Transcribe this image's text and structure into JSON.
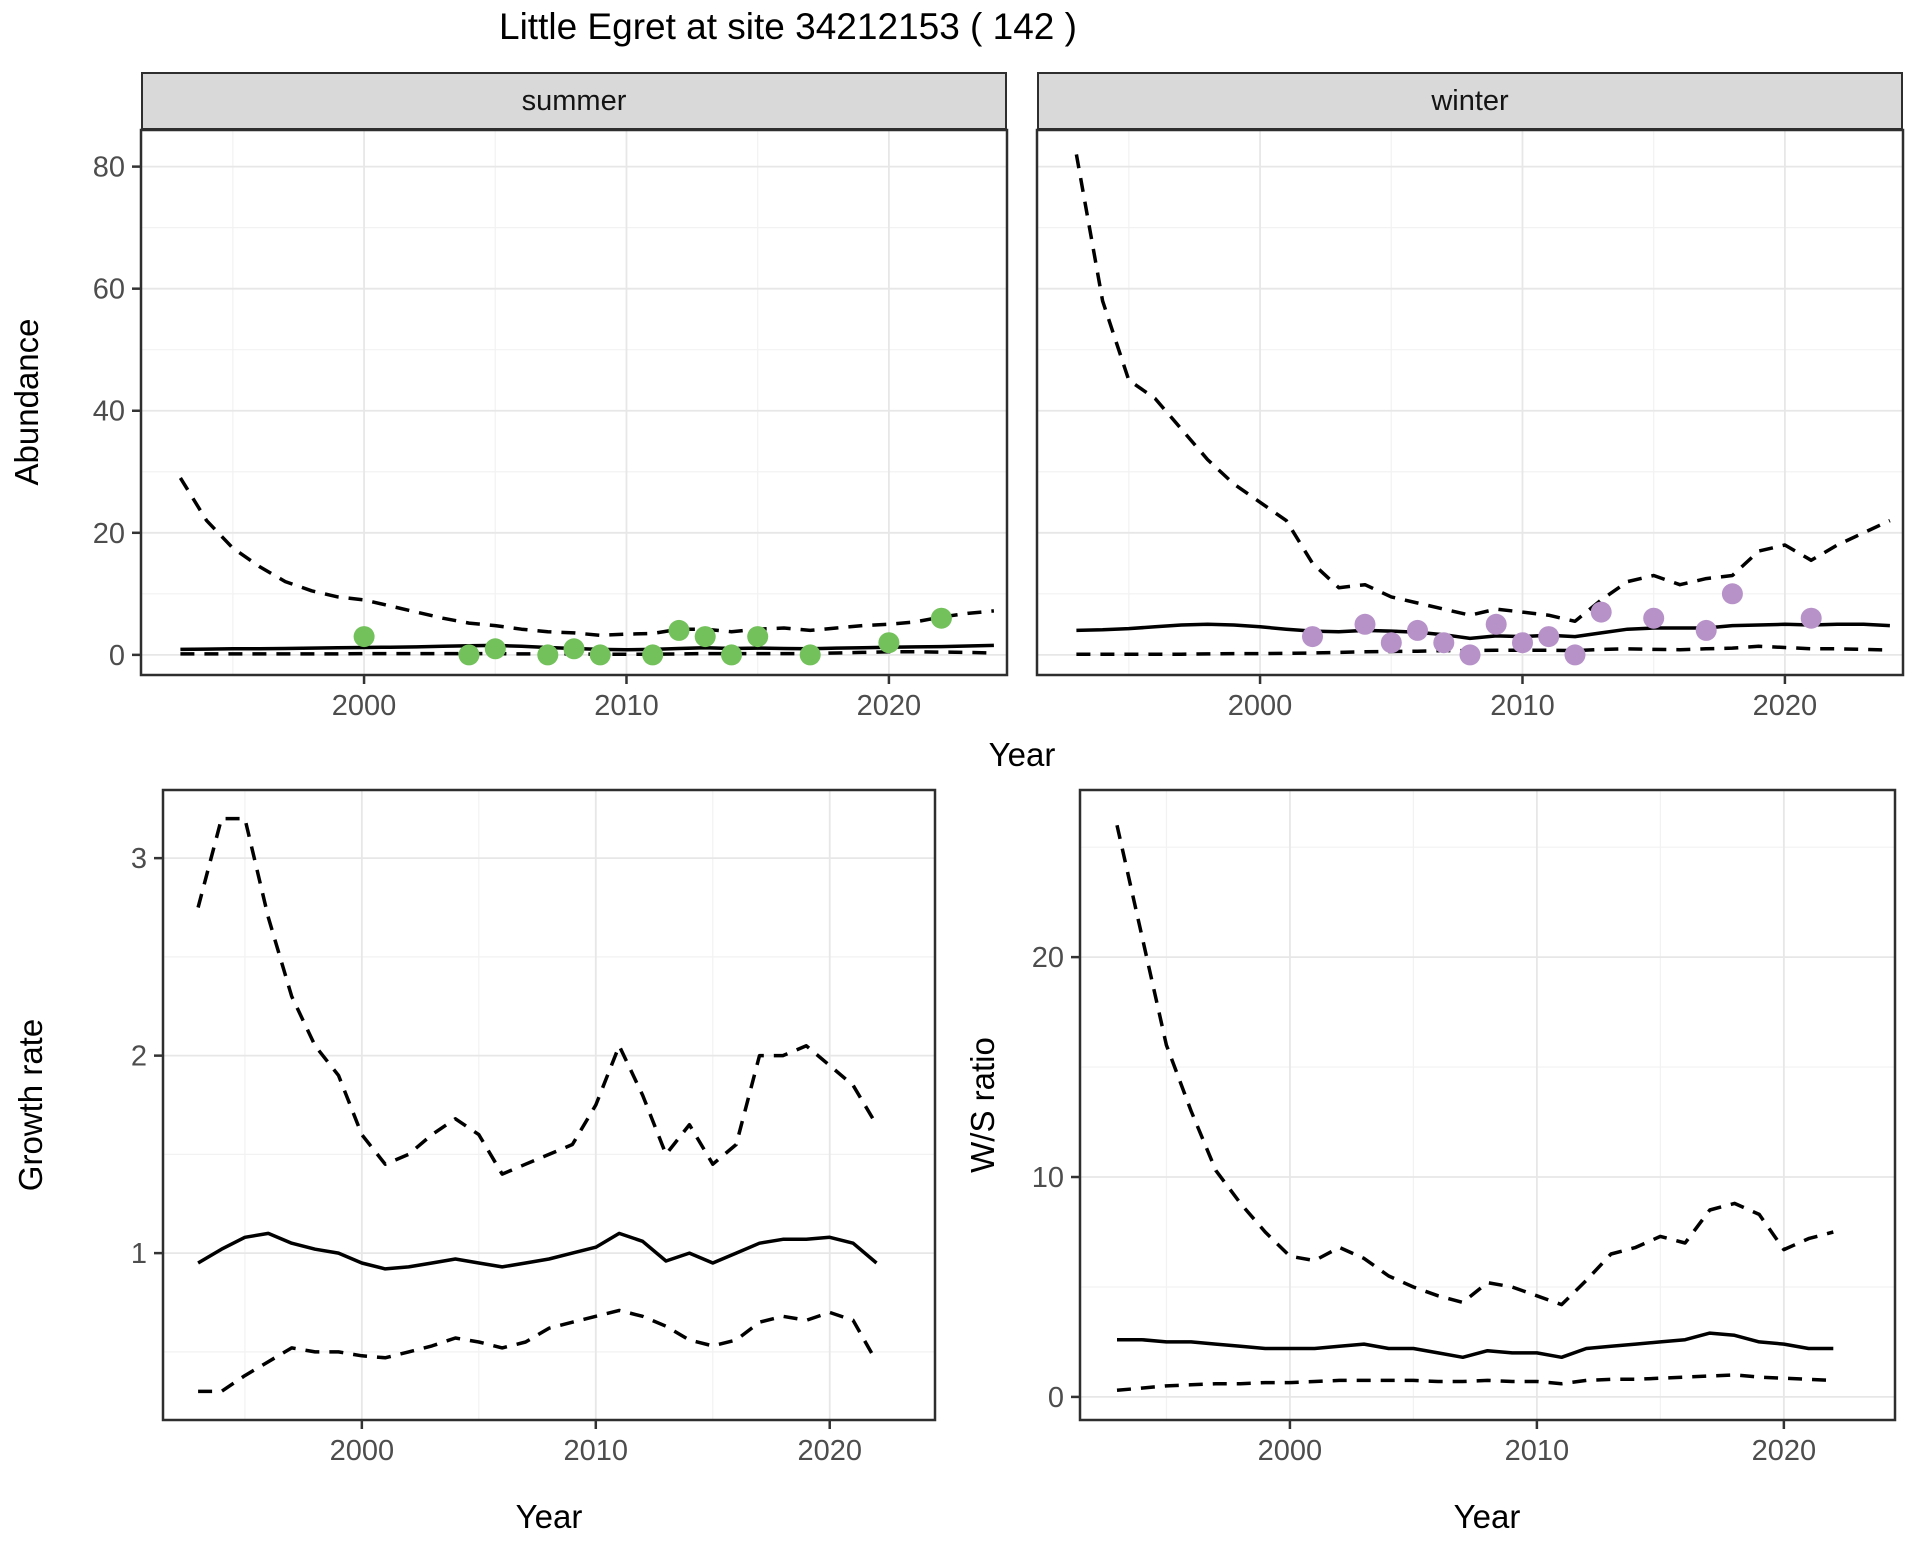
{
  "title": "Little Egret at site 34212153 ( 142 )",
  "facets": {
    "summer": "summer",
    "winter": "winter"
  },
  "axis_titles": {
    "abundance": "Abundance",
    "year_top": "Year",
    "growth_rate": "Growth rate",
    "year_growth": "Year",
    "ws_ratio": "W/S ratio",
    "year_ws": "Year"
  },
  "colors": {
    "summer_points": "#72C15A",
    "winter_points": "#B792C9",
    "line": "#000000",
    "strip_fill": "#D9D9D9",
    "panel_border": "#2E2E2E",
    "grid_major": "#E7E7E7",
    "grid_minor": "#F2F2F2",
    "tick_text": "#4D4D4D"
  },
  "chart_data": [
    {
      "key": "summer_abundance",
      "type": "line",
      "facet": "summer",
      "title": "",
      "xlabel": "Year",
      "ylabel": "Abundance",
      "xlim": [
        1991.5,
        2024.5
      ],
      "ylim": [
        -3.3,
        86
      ],
      "x_ticks": [
        2000,
        2010,
        2020
      ],
      "x_minor": [
        1995,
        2005,
        2015
      ],
      "y_ticks": [
        0,
        20,
        40,
        60,
        80
      ],
      "y_minor": [
        10,
        30,
        50,
        70
      ],
      "x": [
        1993,
        1994,
        1995,
        1996,
        1997,
        1998,
        1999,
        2000,
        2001,
        2002,
        2003,
        2004,
        2005,
        2006,
        2007,
        2008,
        2009,
        2010,
        2011,
        2012,
        2013,
        2014,
        2015,
        2016,
        2017,
        2018,
        2019,
        2020,
        2021,
        2022,
        2023,
        2024
      ],
      "series": [
        {
          "name": "upper_ci",
          "style": "dashed",
          "values": [
            29,
            22,
            17.5,
            14.5,
            12,
            10.5,
            9.5,
            9,
            8,
            7,
            6,
            5.2,
            4.8,
            4.2,
            3.8,
            3.6,
            3.2,
            3.4,
            3.5,
            4.2,
            4.2,
            3.8,
            4.2,
            4.4,
            4.0,
            4.4,
            4.8,
            5.0,
            5.4,
            6.2,
            6.8,
            7.2
          ]
        },
        {
          "name": "fit",
          "style": "solid",
          "values": [
            0.9,
            0.95,
            1.0,
            1.0,
            1.05,
            1.1,
            1.15,
            1.2,
            1.25,
            1.3,
            1.4,
            1.5,
            1.55,
            1.4,
            1.2,
            1.05,
            0.9,
            0.85,
            0.9,
            1.05,
            1.15,
            1.05,
            1.1,
            1.05,
            1.0,
            1.1,
            1.15,
            1.25,
            1.3,
            1.35,
            1.45,
            1.55
          ]
        },
        {
          "name": "lower_ci",
          "style": "dashed",
          "values": [
            0.15,
            0.15,
            0.15,
            0.15,
            0.15,
            0.15,
            0.15,
            0.2,
            0.2,
            0.2,
            0.2,
            0.2,
            0.2,
            0.15,
            0.15,
            0.15,
            0.1,
            0.1,
            0.1,
            0.15,
            0.2,
            0.2,
            0.2,
            0.2,
            0.2,
            0.3,
            0.4,
            0.5,
            0.5,
            0.45,
            0.4,
            0.3
          ]
        }
      ],
      "points": {
        "color": "#72C15A",
        "data": [
          [
            2000,
            3
          ],
          [
            2004,
            0
          ],
          [
            2005,
            1
          ],
          [
            2007,
            0
          ],
          [
            2008,
            1
          ],
          [
            2009,
            0
          ],
          [
            2011,
            0
          ],
          [
            2012,
            4
          ],
          [
            2013,
            3
          ],
          [
            2014,
            0
          ],
          [
            2015,
            3
          ],
          [
            2017,
            0
          ],
          [
            2020,
            2
          ],
          [
            2022,
            6
          ]
        ]
      }
    },
    {
      "key": "winter_abundance",
      "type": "line",
      "facet": "winter",
      "title": "",
      "xlabel": "Year",
      "ylabel": "Abundance",
      "xlim": [
        1991.5,
        2024.5
      ],
      "ylim": [
        -3.3,
        86
      ],
      "x_ticks": [
        2000,
        2010,
        2020
      ],
      "x_minor": [
        1995,
        2005,
        2015
      ],
      "y_ticks": [
        0,
        20,
        40,
        60,
        80
      ],
      "y_minor": [
        10,
        30,
        50,
        70
      ],
      "x": [
        1993,
        1994,
        1995,
        1996,
        1997,
        1998,
        1999,
        2000,
        2001,
        2002,
        2003,
        2004,
        2005,
        2006,
        2007,
        2008,
        2009,
        2010,
        2011,
        2012,
        2013,
        2014,
        2015,
        2016,
        2017,
        2018,
        2019,
        2020,
        2021,
        2022,
        2023,
        2024
      ],
      "series": [
        {
          "name": "upper_ci",
          "style": "dashed",
          "values": [
            82,
            58,
            45,
            42,
            37,
            32,
            28,
            25,
            22,
            15,
            11,
            11.5,
            9.5,
            8.5,
            7.5,
            6.5,
            7.5,
            7,
            6.5,
            5.5,
            9,
            12,
            13,
            11.5,
            12.5,
            13,
            17,
            18,
            15.5,
            18,
            20,
            22
          ]
        },
        {
          "name": "fit",
          "style": "solid",
          "values": [
            4.0,
            4.1,
            4.3,
            4.6,
            4.9,
            5.0,
            4.9,
            4.6,
            4.2,
            3.9,
            3.8,
            4.0,
            3.9,
            3.7,
            3.3,
            2.7,
            3.1,
            3.0,
            3.2,
            3.0,
            3.6,
            4.2,
            4.4,
            4.4,
            4.4,
            4.8,
            4.9,
            5.0,
            4.9,
            5.0,
            5.0,
            4.8
          ]
        },
        {
          "name": "lower_ci",
          "style": "dashed",
          "values": [
            0.1,
            0.1,
            0.1,
            0.1,
            0.1,
            0.15,
            0.2,
            0.2,
            0.25,
            0.3,
            0.4,
            0.5,
            0.55,
            0.6,
            0.7,
            0.7,
            0.75,
            0.75,
            0.75,
            0.7,
            0.9,
            1.0,
            0.9,
            0.85,
            1.0,
            1.1,
            1.4,
            1.2,
            1.0,
            1.0,
            0.9,
            0.8
          ]
        }
      ],
      "points": {
        "color": "#B792C9",
        "data": [
          [
            2002,
            3
          ],
          [
            2004,
            5
          ],
          [
            2005,
            2
          ],
          [
            2006,
            4
          ],
          [
            2007,
            2
          ],
          [
            2008,
            0
          ],
          [
            2009,
            5
          ],
          [
            2010,
            2
          ],
          [
            2011,
            3
          ],
          [
            2012,
            0
          ],
          [
            2013,
            7
          ],
          [
            2015,
            6
          ],
          [
            2017,
            4
          ],
          [
            2018,
            10
          ],
          [
            2021,
            6
          ]
        ]
      }
    },
    {
      "key": "growth_rate",
      "type": "line",
      "facet": "",
      "title": "",
      "xlabel": "Year",
      "ylabel": "Growth rate",
      "xlim": [
        1991.5,
        2024.5
      ],
      "ylim": [
        0.155,
        3.345
      ],
      "x_ticks": [
        2000,
        2010,
        2020
      ],
      "x_minor": [
        1995,
        2005,
        2015
      ],
      "y_ticks": [
        1,
        2,
        3
      ],
      "y_minor": [
        0.5,
        1.5,
        2.5
      ],
      "x": [
        1993,
        1994,
        1995,
        1996,
        1997,
        1998,
        1999,
        2000,
        2001,
        2002,
        2003,
        2004,
        2005,
        2006,
        2007,
        2008,
        2009,
        2010,
        2011,
        2012,
        2013,
        2014,
        2015,
        2016,
        2017,
        2018,
        2019,
        2020,
        2021,
        2022
      ],
      "series": [
        {
          "name": "upper_ci",
          "style": "dashed",
          "values": [
            2.75,
            3.2,
            3.2,
            2.7,
            2.3,
            2.05,
            1.9,
            1.6,
            1.45,
            1.5,
            1.6,
            1.68,
            1.6,
            1.4,
            1.45,
            1.5,
            1.55,
            1.75,
            2.05,
            1.8,
            1.5,
            1.65,
            1.45,
            1.55,
            2.0,
            2.0,
            2.05,
            1.95,
            1.85,
            1.65
          ]
        },
        {
          "name": "fit",
          "style": "solid",
          "values": [
            0.95,
            1.02,
            1.08,
            1.1,
            1.05,
            1.02,
            1.0,
            0.95,
            0.92,
            0.93,
            0.95,
            0.97,
            0.95,
            0.93,
            0.95,
            0.97,
            1.0,
            1.03,
            1.1,
            1.06,
            0.96,
            1.0,
            0.95,
            1.0,
            1.05,
            1.07,
            1.07,
            1.08,
            1.05,
            0.95
          ]
        },
        {
          "name": "lower_ci",
          "style": "dashed",
          "values": [
            0.3,
            0.3,
            0.38,
            0.45,
            0.52,
            0.5,
            0.5,
            0.48,
            0.47,
            0.5,
            0.53,
            0.57,
            0.55,
            0.52,
            0.55,
            0.62,
            0.65,
            0.68,
            0.71,
            0.68,
            0.63,
            0.56,
            0.53,
            0.56,
            0.65,
            0.68,
            0.66,
            0.7,
            0.66,
            0.45
          ]
        }
      ],
      "points": null
    },
    {
      "key": "ws_ratio",
      "type": "line",
      "facet": "",
      "title": "",
      "xlabel": "Year",
      "ylabel": "W/S ratio",
      "xlim": [
        1991.5,
        2024.5
      ],
      "ylim": [
        -1.05,
        27.6
      ],
      "x_ticks": [
        2000,
        2010,
        2020
      ],
      "x_minor": [
        1995,
        2005,
        2015
      ],
      "y_ticks": [
        0,
        10,
        20
      ],
      "y_minor": [
        5,
        15,
        25
      ],
      "x": [
        1993,
        1994,
        1995,
        1996,
        1997,
        1998,
        1999,
        2000,
        2001,
        2002,
        2003,
        2004,
        2005,
        2006,
        2007,
        2008,
        2009,
        2010,
        2011,
        2012,
        2013,
        2014,
        2015,
        2016,
        2017,
        2018,
        2019,
        2020,
        2021,
        2022
      ],
      "series": [
        {
          "name": "upper_ci",
          "style": "dashed",
          "values": [
            26,
            21,
            16,
            13,
            10.3,
            8.8,
            7.5,
            6.4,
            6.2,
            6.8,
            6.3,
            5.5,
            5.0,
            4.6,
            4.3,
            5.2,
            5.0,
            4.6,
            4.2,
            5.3,
            6.5,
            6.8,
            7.3,
            7.0,
            8.5,
            8.8,
            8.3,
            6.7,
            7.2,
            7.5
          ]
        },
        {
          "name": "fit",
          "style": "solid",
          "values": [
            2.6,
            2.6,
            2.5,
            2.5,
            2.4,
            2.3,
            2.2,
            2.2,
            2.2,
            2.3,
            2.4,
            2.2,
            2.2,
            2.0,
            1.8,
            2.1,
            2.0,
            2.0,
            1.8,
            2.2,
            2.3,
            2.4,
            2.5,
            2.6,
            2.9,
            2.8,
            2.5,
            2.4,
            2.2,
            2.2
          ]
        },
        {
          "name": "lower_ci",
          "style": "dashed",
          "values": [
            0.3,
            0.4,
            0.5,
            0.55,
            0.6,
            0.6,
            0.65,
            0.65,
            0.7,
            0.75,
            0.75,
            0.75,
            0.75,
            0.7,
            0.7,
            0.75,
            0.7,
            0.7,
            0.6,
            0.75,
            0.8,
            0.8,
            0.85,
            0.9,
            0.95,
            1.0,
            0.9,
            0.85,
            0.8,
            0.75
          ]
        }
      ],
      "points": null
    }
  ]
}
